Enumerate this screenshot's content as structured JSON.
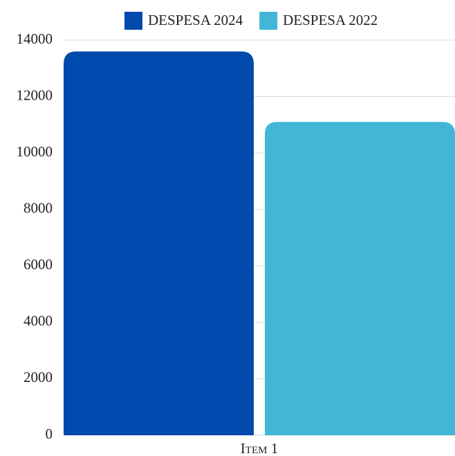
{
  "chart_data": {
    "type": "bar",
    "categories": [
      "Item 1"
    ],
    "series": [
      {
        "name": "DESPESA 2024",
        "color": "#004aad",
        "values": [
          13600
        ]
      },
      {
        "name": "DESPESA 2022",
        "color": "#41b6d6",
        "values": [
          11100
        ]
      }
    ],
    "ylim": [
      0,
      14000
    ],
    "yticks": [
      0,
      2000,
      4000,
      6000,
      8000,
      10000,
      12000,
      14000
    ],
    "grid": true,
    "legend": "top"
  }
}
